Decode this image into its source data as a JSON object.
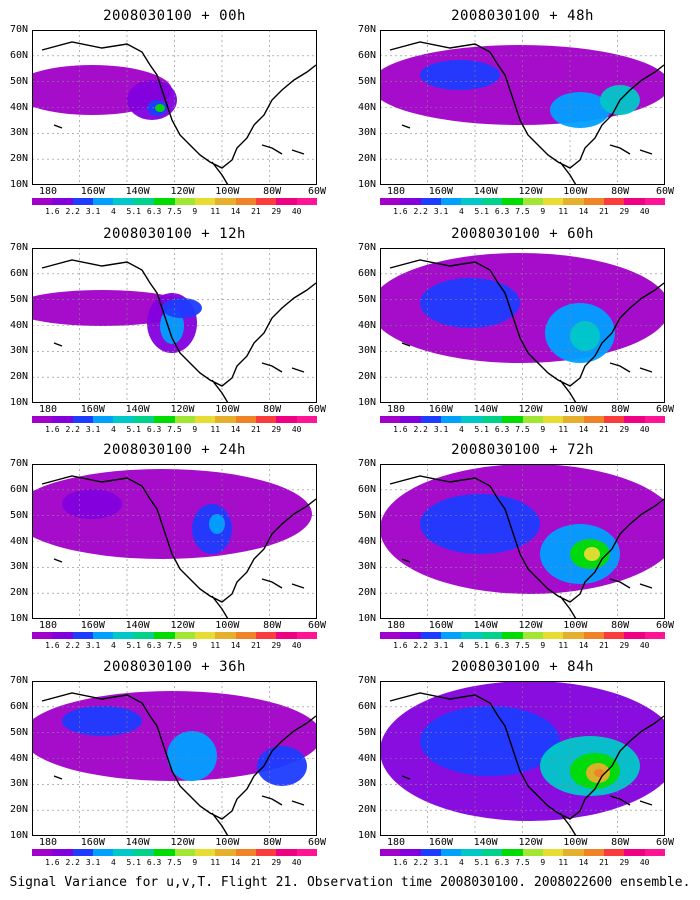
{
  "panels": [
    {
      "title": "2008030100 + 00h"
    },
    {
      "title": "2008030100 + 48h"
    },
    {
      "title": "2008030100 + 12h"
    },
    {
      "title": "2008030100 + 60h"
    },
    {
      "title": "2008030100 + 24h"
    },
    {
      "title": "2008030100 + 72h"
    },
    {
      "title": "2008030100 + 36h"
    },
    {
      "title": "2008030100 + 84h"
    }
  ],
  "lat_labels": [
    "70N",
    "60N",
    "50N",
    "40N",
    "30N",
    "20N",
    "10N"
  ],
  "lon_labels": [
    "180",
    "160W",
    "140W",
    "120W",
    "100W",
    "80W",
    "60W"
  ],
  "colorbar": {
    "labels": [
      "1.6",
      "2.2",
      "3.1",
      "4",
      "5.1",
      "6.3",
      "7.5",
      "9",
      "11",
      "14",
      "21",
      "29",
      "40"
    ],
    "colors": [
      "#a000c8",
      "#8200dc",
      "#1e3cff",
      "#00a0ff",
      "#00c8c8",
      "#00d28c",
      "#00dc00",
      "#a0e632",
      "#e6dc32",
      "#e6af2d",
      "#f08228",
      "#fa3c3c",
      "#f00082",
      "#ff1493"
    ]
  },
  "caption": "Signal Variance for u,v,T. Flight 21. Observation time 2008030100. 2008022600 ensemble."
}
